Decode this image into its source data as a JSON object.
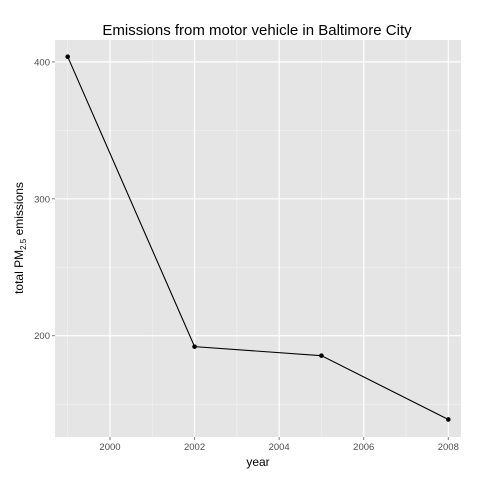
{
  "chart_data": {
    "type": "line",
    "title": "Emissions from motor vehicle in Baltimore City",
    "xlabel": "year",
    "ylabel_prefix": "total PM",
    "ylabel_subscript": "2.5",
    "ylabel_suffix": " emissions",
    "x": [
      1999,
      2002,
      2005,
      2008
    ],
    "series": [
      {
        "values": [
          403.8,
          192.0,
          185.4,
          138.8
        ]
      }
    ],
    "xticks": [
      2000,
      2002,
      2004,
      2006,
      2008
    ],
    "xtick_labels": [
      "2000",
      "2002",
      "2004",
      "2006",
      "2008"
    ],
    "yticks": [
      200,
      300,
      400
    ],
    "ytick_labels": [
      "200",
      "300",
      "400"
    ],
    "xlim": [
      1998.7,
      2008.3
    ],
    "ylim": [
      126,
      416
    ],
    "grid": true,
    "colors": {
      "panel_background": "#e5e5e5",
      "grid_major": "#ffffff",
      "grid_minor": "#f2f2f2",
      "line": "#000000",
      "point": "#000000"
    }
  }
}
